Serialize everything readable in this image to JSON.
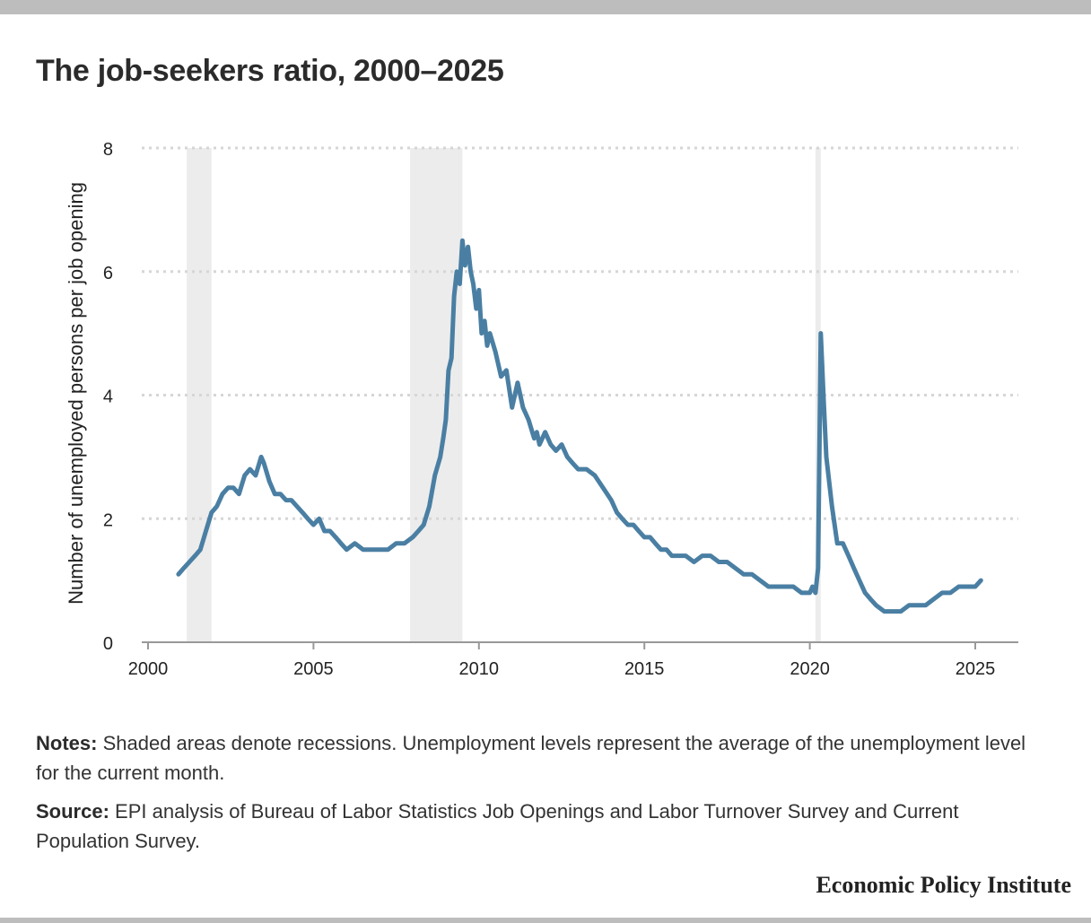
{
  "title": "The job-seekers ratio, 2000–2025",
  "notes": {
    "label": "Notes:",
    "text": "Shaded areas denote recessions. Unemployment levels represent the average of the unemployment level for the current month."
  },
  "source": {
    "label": "Source:",
    "text": "EPI analysis of Bureau of Labor Statistics Job Openings and Labor Turnover Survey and Current Population Survey."
  },
  "brand": "Economic Policy Institute",
  "colors": {
    "line": "#4a7fa3",
    "recession": "#ececec",
    "grid": "#d6d6d6",
    "axis": "#999999"
  },
  "chart_data": {
    "type": "line",
    "title": "The job-seekers ratio, 2000–2025",
    "xlabel": "",
    "ylabel": "Number of unemployed persons per job opening",
    "xlim": [
      2000,
      2026
    ],
    "ylim": [
      0,
      8
    ],
    "xticks": [
      2000,
      2005,
      2010,
      2015,
      2020,
      2025
    ],
    "yticks": [
      0,
      2,
      4,
      6,
      8
    ],
    "grid": true,
    "recessions": [
      [
        2001.17,
        2001.92
      ],
      [
        2007.92,
        2009.5
      ],
      [
        2020.17,
        2020.33
      ]
    ],
    "series": [
      {
        "name": "Job-seekers ratio",
        "x": [
          2000.92,
          2001.08,
          2001.25,
          2001.42,
          2001.58,
          2001.75,
          2001.92,
          2002.08,
          2002.25,
          2002.42,
          2002.58,
          2002.75,
          2002.92,
          2003.08,
          2003.25,
          2003.42,
          2003.5,
          2003.67,
          2003.83,
          2004.0,
          2004.17,
          2004.33,
          2004.5,
          2004.67,
          2004.83,
          2005.0,
          2005.17,
          2005.33,
          2005.5,
          2005.67,
          2005.83,
          2006.0,
          2006.25,
          2006.5,
          2006.75,
          2007.0,
          2007.25,
          2007.5,
          2007.75,
          2008.0,
          2008.17,
          2008.33,
          2008.5,
          2008.67,
          2008.83,
          2008.92,
          2009.0,
          2009.08,
          2009.17,
          2009.25,
          2009.33,
          2009.42,
          2009.5,
          2009.58,
          2009.67,
          2009.75,
          2009.83,
          2009.92,
          2010.0,
          2010.08,
          2010.17,
          2010.25,
          2010.33,
          2010.5,
          2010.67,
          2010.83,
          2011.0,
          2011.17,
          2011.33,
          2011.5,
          2011.67,
          2011.75,
          2011.83,
          2012.0,
          2012.17,
          2012.33,
          2012.5,
          2012.67,
          2012.83,
          2013.0,
          2013.25,
          2013.5,
          2013.75,
          2014.0,
          2014.17,
          2014.33,
          2014.5,
          2014.67,
          2014.83,
          2015.0,
          2015.17,
          2015.33,
          2015.5,
          2015.67,
          2015.83,
          2016.0,
          2016.25,
          2016.5,
          2016.75,
          2017.0,
          2017.25,
          2017.5,
          2017.75,
          2018.0,
          2018.25,
          2018.5,
          2018.75,
          2019.0,
          2019.25,
          2019.5,
          2019.75,
          2020.0,
          2020.08,
          2020.17,
          2020.25,
          2020.33,
          2020.42,
          2020.5,
          2020.67,
          2020.83,
          2021.0,
          2021.17,
          2021.33,
          2021.5,
          2021.67,
          2021.83,
          2022.0,
          2022.25,
          2022.5,
          2022.75,
          2023.0,
          2023.25,
          2023.5,
          2023.75,
          2024.0,
          2024.25,
          2024.5,
          2024.75,
          2025.0,
          2025.17
        ],
        "values": [
          1.1,
          1.2,
          1.3,
          1.4,
          1.5,
          1.8,
          2.1,
          2.2,
          2.4,
          2.5,
          2.5,
          2.4,
          2.7,
          2.8,
          2.7,
          3.0,
          2.9,
          2.6,
          2.4,
          2.4,
          2.3,
          2.3,
          2.2,
          2.1,
          2.0,
          1.9,
          2.0,
          1.8,
          1.8,
          1.7,
          1.6,
          1.5,
          1.6,
          1.5,
          1.5,
          1.5,
          1.5,
          1.6,
          1.6,
          1.7,
          1.8,
          1.9,
          2.2,
          2.7,
          3.0,
          3.3,
          3.6,
          4.4,
          4.6,
          5.6,
          6.0,
          5.8,
          6.5,
          6.1,
          6.4,
          6.0,
          5.8,
          5.4,
          5.7,
          5.0,
          5.2,
          4.8,
          5.0,
          4.7,
          4.3,
          4.4,
          3.8,
          4.2,
          3.8,
          3.6,
          3.3,
          3.4,
          3.2,
          3.4,
          3.2,
          3.1,
          3.2,
          3.0,
          2.9,
          2.8,
          2.8,
          2.7,
          2.5,
          2.3,
          2.1,
          2.0,
          1.9,
          1.9,
          1.8,
          1.7,
          1.7,
          1.6,
          1.5,
          1.5,
          1.4,
          1.4,
          1.4,
          1.3,
          1.4,
          1.4,
          1.3,
          1.3,
          1.2,
          1.1,
          1.1,
          1.0,
          0.9,
          0.9,
          0.9,
          0.9,
          0.8,
          0.8,
          0.9,
          0.8,
          1.2,
          5.0,
          3.9,
          3.0,
          2.2,
          1.6,
          1.6,
          1.4,
          1.2,
          1.0,
          0.8,
          0.7,
          0.6,
          0.5,
          0.5,
          0.5,
          0.6,
          0.6,
          0.6,
          0.7,
          0.8,
          0.8,
          0.9,
          0.9,
          0.9,
          1.0
        ]
      }
    ]
  }
}
